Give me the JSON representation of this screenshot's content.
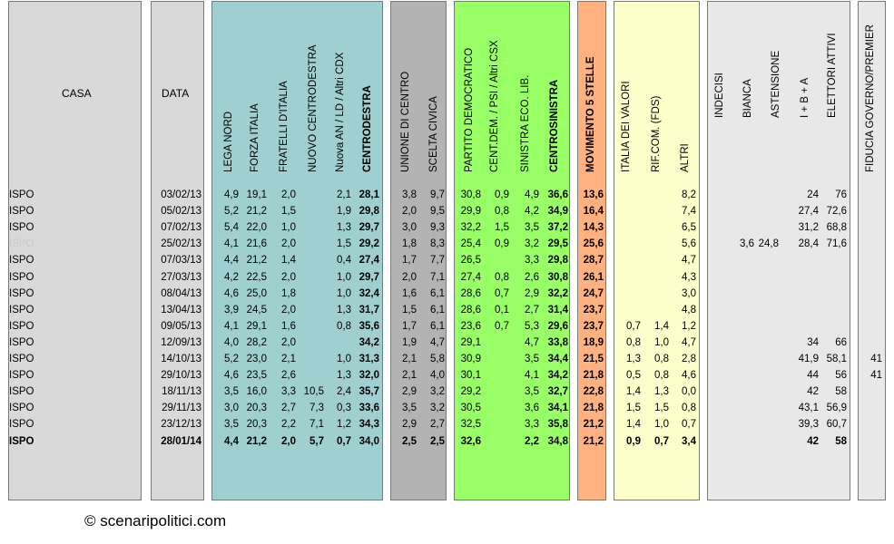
{
  "colors": {
    "casa_panel": "#d9d9d9",
    "centrodestra_panel": "#9fcfcf",
    "centro_panel": "#b3b3b3",
    "centrosinistra_panel": "#99ff66",
    "m5s_panel": "#ffb27f",
    "minori_panel": "#ffffcc",
    "indecisi_panel": "#e8e8e8"
  },
  "headers": {
    "casa": "CASA",
    "data": "DATA",
    "lega_nord": "LEGA NORD",
    "forza_italia": "FORZA ITALIA",
    "fratelli_italia": "FRATELLI D'ITALIA",
    "nuovo_cd": "NUOVO  CENTRODESTRA",
    "altri_cdx": "Nuova AN / LD / Altri CDX",
    "centrodestra": "CENTRODESTRA",
    "udc": "UNIONE DI CENTRO",
    "scelta_civica": "SCELTA CIVICA",
    "pd": "PARTITO DEMOCRATICO",
    "altri_csx": "CENT.DEM. / PSI / Altri CSX",
    "sel": "SINISTRA ECO. LIB.",
    "centrosinistra": "CENTROSINISTRA",
    "m5s": "MOVIMENTO 5 STELLE",
    "idv": "ITALIA DEI VALORI",
    "rif": "RIF.COM. (FDS)",
    "altri": "ALTRI",
    "indecisi": "INDECISI",
    "bianca": "BIANCA",
    "astensione": "ASTENSIONE",
    "ibA": "I + B + A",
    "elettori": "ELETTORI ATTIVI",
    "fiducia": "FIDUCIA GOVERNO/PREMIER"
  },
  "chart_data": {
    "type": "table",
    "columns": [
      "casa",
      "data",
      "lega_nord",
      "forza_italia",
      "fratelli_italia",
      "nuovo_cd",
      "altri_cdx",
      "centrodestra",
      "udc",
      "scelta_civica",
      "pd",
      "altri_csx",
      "sel",
      "centrosinistra",
      "m5s",
      "idv",
      "rif",
      "altri",
      "indecisi",
      "bianca",
      "astensione",
      "ibA",
      "elettori",
      "fiducia"
    ],
    "rows": [
      [
        "ISPO",
        "03/02/13",
        "4,9",
        "19,1",
        "2,0",
        "",
        "2,1",
        "28,1",
        "3,8",
        "9,7",
        "30,8",
        "0,9",
        "4,9",
        "36,6",
        "13,6",
        "",
        "",
        "8,2",
        "",
        "",
        "",
        "24",
        "76",
        ""
      ],
      [
        "ISPO",
        "05/02/13",
        "5,2",
        "21,2",
        "1,5",
        "",
        "1,9",
        "29,8",
        "2,0",
        "9,5",
        "29,9",
        "0,8",
        "4,2",
        "34,9",
        "16,4",
        "",
        "",
        "7,4",
        "",
        "",
        "",
        "27,4",
        "72,6",
        ""
      ],
      [
        "ISPO",
        "07/02/13",
        "5,4",
        "22,0",
        "1,0",
        "",
        "1,3",
        "29,7",
        "3,0",
        "9,3",
        "32,2",
        "1,5",
        "3,5",
        "37,2",
        "14,3",
        "",
        "",
        "6,5",
        "",
        "",
        "",
        "31,2",
        "68,8",
        ""
      ],
      [
        "ISPO",
        "25/02/13",
        "4,1",
        "21,6",
        "2,0",
        "",
        "1,5",
        "29,2",
        "1,8",
        "8,3",
        "25,4",
        "0,9",
        "3,2",
        "29,5",
        "25,6",
        "",
        "",
        "5,6",
        "",
        "3,6",
        "24,8",
        "28,4",
        "71,6",
        ""
      ],
      [
        "ISPO",
        "07/03/13",
        "4,4",
        "21,2",
        "1,4",
        "",
        "0,4",
        "27,4",
        "1,7",
        "7,7",
        "26,5",
        "",
        "3,3",
        "29,8",
        "28,7",
        "",
        "",
        "4,7",
        "",
        "",
        "",
        "",
        "",
        ""
      ],
      [
        "ISPO",
        "27/03/13",
        "4,2",
        "22,5",
        "2,0",
        "",
        "1,0",
        "29,7",
        "2,0",
        "7,1",
        "27,4",
        "0,8",
        "2,6",
        "30,8",
        "26,1",
        "",
        "",
        "4,3",
        "",
        "",
        "",
        "",
        "",
        ""
      ],
      [
        "ISPO",
        "08/04/13",
        "4,6",
        "25,0",
        "1,8",
        "",
        "1,0",
        "32,4",
        "1,6",
        "6,1",
        "28,6",
        "0,7",
        "2,9",
        "32,2",
        "24,7",
        "",
        "",
        "3,0",
        "",
        "",
        "",
        "",
        "",
        ""
      ],
      [
        "ISPO",
        "13/04/13",
        "3,9",
        "24,5",
        "2,0",
        "",
        "1,3",
        "31,7",
        "1,5",
        "6,1",
        "28,6",
        "0,1",
        "2,7",
        "31,4",
        "23,7",
        "",
        "",
        "4,8",
        "",
        "",
        "",
        "",
        "",
        ""
      ],
      [
        "ISPO",
        "09/05/13",
        "4,1",
        "29,1",
        "1,6",
        "",
        "0,8",
        "35,6",
        "1,7",
        "6,1",
        "23,6",
        "0,7",
        "5,3",
        "29,6",
        "23,7",
        "0,7",
        "1,4",
        "1,2",
        "",
        "",
        "",
        "",
        "",
        ""
      ],
      [
        "ISPO",
        "12/09/13",
        "4,0",
        "28,2",
        "2,0",
        "",
        "",
        "34,2",
        "1,9",
        "4,7",
        "29,1",
        "",
        "4,7",
        "33,8",
        "18,9",
        "0,8",
        "1,0",
        "4,7",
        "",
        "",
        "",
        "34",
        "66",
        ""
      ],
      [
        "ISPO",
        "14/10/13",
        "5,2",
        "23,0",
        "2,1",
        "",
        "1,0",
        "31,3",
        "2,1",
        "5,8",
        "30,9",
        "",
        "3,5",
        "34,4",
        "21,5",
        "1,3",
        "0,8",
        "2,8",
        "",
        "",
        "",
        "41,9",
        "58,1",
        "41"
      ],
      [
        "ISPO",
        "29/10/13",
        "4,6",
        "23,5",
        "2,6",
        "",
        "1,3",
        "32,0",
        "2,1",
        "4,0",
        "30,1",
        "",
        "4,1",
        "34,2",
        "21,8",
        "0,5",
        "0,8",
        "4,6",
        "",
        "",
        "",
        "44",
        "56",
        "41"
      ],
      [
        "ISPO",
        "18/11/13",
        "3,5",
        "16,0",
        "3,3",
        "10,5",
        "2,4",
        "35,7",
        "2,9",
        "3,2",
        "29,2",
        "",
        "3,5",
        "32,7",
        "22,8",
        "1,4",
        "1,3",
        "0,0",
        "",
        "",
        "",
        "42",
        "58",
        ""
      ],
      [
        "ISPO",
        "29/11/13",
        "3,0",
        "20,3",
        "2,7",
        "7,3",
        "0,3",
        "33,6",
        "3,5",
        "3,2",
        "30,5",
        "",
        "3,6",
        "34,1",
        "21,8",
        "1,5",
        "1,5",
        "0,8",
        "",
        "",
        "",
        "43,1",
        "56,9",
        ""
      ],
      [
        "ISPO",
        "23/12/13",
        "3,5",
        "20,3",
        "2,2",
        "7,1",
        "1,2",
        "34,3",
        "2,9",
        "2,7",
        "32,5",
        "",
        "3,3",
        "35,8",
        "21,2",
        "1,4",
        "1,0",
        "0,7",
        "",
        "",
        "",
        "39,3",
        "60,7",
        ""
      ],
      [
        "ISPO",
        "28/01/14",
        "4,4",
        "21,2",
        "2,0",
        "5,7",
        "0,7",
        "34,0",
        "2,5",
        "2,5",
        "32,6",
        "",
        "2,2",
        "34,8",
        "21,2",
        "0,9",
        "0,7",
        "3,4",
        "",
        "",
        "",
        "42",
        "58",
        ""
      ]
    ]
  },
  "footer": {
    "copyright": "© scenaripolitici.com"
  }
}
